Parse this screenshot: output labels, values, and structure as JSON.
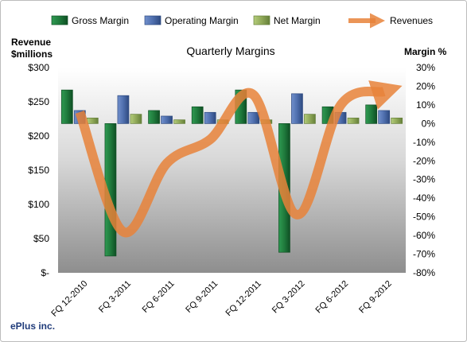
{
  "chart_data": {
    "type": "bar",
    "title": "Quarterly Margins",
    "company": "ePlus inc.",
    "left_axis_title_line1": "Revenue",
    "left_axis_title_line2": "$millions",
    "right_axis_title": "Margin %",
    "left_ylim": [
      0,
      300
    ],
    "right_ylim": [
      -80,
      30
    ],
    "left_ticks": [
      {
        "value": 300,
        "label": "$300"
      },
      {
        "value": 250,
        "label": "$250"
      },
      {
        "value": 200,
        "label": "$200"
      },
      {
        "value": 150,
        "label": "$150"
      },
      {
        "value": 100,
        "label": "$100"
      },
      {
        "value": 50,
        "label": "$50"
      },
      {
        "value": 0,
        "label": "$-"
      }
    ],
    "right_ticks": [
      {
        "value": 30,
        "label": "30%"
      },
      {
        "value": 20,
        "label": "20%"
      },
      {
        "value": 10,
        "label": "10%"
      },
      {
        "value": 0,
        "label": "0%"
      },
      {
        "value": -10,
        "label": "-10%"
      },
      {
        "value": -20,
        "label": "-20%"
      },
      {
        "value": -30,
        "label": "-30%"
      },
      {
        "value": -40,
        "label": "-40%"
      },
      {
        "value": -50,
        "label": "-50%"
      },
      {
        "value": -60,
        "label": "-60%"
      },
      {
        "value": -70,
        "label": "-70%"
      },
      {
        "value": -80,
        "label": "-80%"
      }
    ],
    "categories": [
      "FQ 12-2010",
      "FQ 3-2011",
      "FQ 6-2011",
      "FQ 9-2011",
      "FQ 12-2011",
      "FQ 3-2012",
      "FQ 6-2012",
      "FQ 9-2012"
    ],
    "series": [
      {
        "name": "Gross Margin",
        "axis": "right",
        "kind": "bar",
        "color": "#1f7a3c",
        "values": [
          18,
          -71,
          7,
          9,
          18,
          -69,
          9,
          10
        ]
      },
      {
        "name": "Operating Margin",
        "axis": "right",
        "kind": "bar",
        "color": "#4f6fae",
        "values": [
          7,
          15,
          4,
          6,
          6,
          16,
          6,
          7
        ]
      },
      {
        "name": "Net Margin",
        "axis": "right",
        "kind": "bar",
        "color": "#8fa858",
        "values": [
          3,
          5,
          2,
          2,
          2,
          5,
          3,
          3
        ]
      },
      {
        "name": "Revenues",
        "axis": "left",
        "kind": "line",
        "color": "#e8833a",
        "values": [
          235,
          60,
          160,
          195,
          260,
          85,
          245,
          265
        ]
      }
    ],
    "legend_position": "top",
    "grid": false
  }
}
